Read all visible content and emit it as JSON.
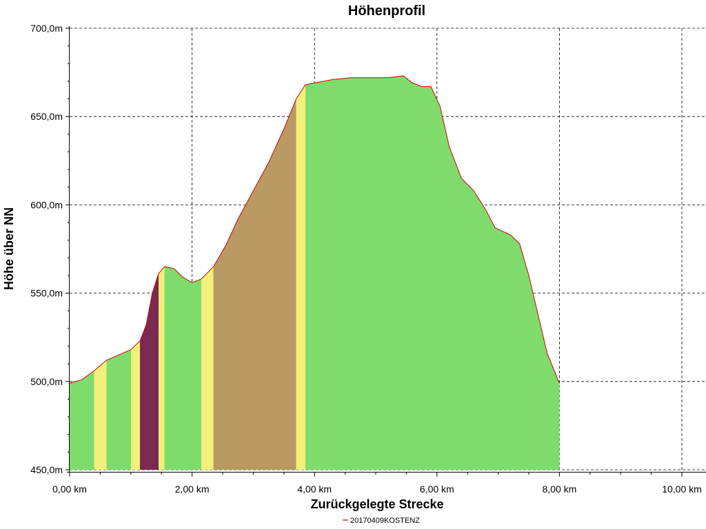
{
  "chart_data": {
    "type": "area",
    "title": "Höhenprofil",
    "xlabel": "Zurückgelegte Strecke",
    "ylabel": "Höhe über NN",
    "xlim": [
      0,
      10
    ],
    "ylim": [
      450,
      700
    ],
    "x_ticks": [
      {
        "value": 0,
        "label": "0,00 km"
      },
      {
        "value": 2,
        "label": "2,00 km"
      },
      {
        "value": 4,
        "label": "4,00 km"
      },
      {
        "value": 6,
        "label": "6,00 km"
      },
      {
        "value": 8,
        "label": "8,00 km"
      },
      {
        "value": 10,
        "label": "10,00 km"
      }
    ],
    "y_ticks": [
      {
        "value": 450,
        "label": "450,0m"
      },
      {
        "value": 500,
        "label": "500,0m"
      },
      {
        "value": 550,
        "label": "550,0m"
      },
      {
        "value": 600,
        "label": "600,0m"
      },
      {
        "value": 650,
        "label": "650,0m"
      },
      {
        "value": 700,
        "label": "700,0m"
      }
    ],
    "grid": true,
    "legend_position": "bottom-center",
    "series": [
      {
        "name": "20170409KOSTENZ",
        "line_color": "#cc0000",
        "points": [
          [
            0.0,
            499
          ],
          [
            0.2,
            501
          ],
          [
            0.4,
            506
          ],
          [
            0.6,
            512
          ],
          [
            0.8,
            515
          ],
          [
            1.0,
            518
          ],
          [
            1.15,
            523
          ],
          [
            1.25,
            532
          ],
          [
            1.35,
            550
          ],
          [
            1.45,
            561
          ],
          [
            1.55,
            565
          ],
          [
            1.7,
            564
          ],
          [
            1.85,
            559
          ],
          [
            2.0,
            556
          ],
          [
            2.15,
            558
          ],
          [
            2.35,
            565
          ],
          [
            2.55,
            577
          ],
          [
            2.75,
            592
          ],
          [
            3.0,
            608
          ],
          [
            3.25,
            624
          ],
          [
            3.5,
            643
          ],
          [
            3.7,
            660
          ],
          [
            3.85,
            668
          ],
          [
            4.0,
            669
          ],
          [
            4.3,
            671
          ],
          [
            4.6,
            672
          ],
          [
            5.0,
            672
          ],
          [
            5.2,
            672
          ],
          [
            5.45,
            673
          ],
          [
            5.6,
            669
          ],
          [
            5.75,
            667
          ],
          [
            5.9,
            667
          ],
          [
            6.05,
            656
          ],
          [
            6.2,
            633
          ],
          [
            6.4,
            615
          ],
          [
            6.6,
            608
          ],
          [
            6.8,
            597
          ],
          [
            6.95,
            587
          ],
          [
            7.2,
            583
          ],
          [
            7.35,
            578
          ],
          [
            7.5,
            560
          ],
          [
            7.65,
            538
          ],
          [
            7.8,
            516
          ],
          [
            8.0,
            499
          ]
        ]
      }
    ],
    "slope_colors": {
      "flat": "#7fdc6c",
      "moderate": "#f2f07a",
      "steep": "#b89a62",
      "very_steep": "#7a2a50"
    }
  }
}
